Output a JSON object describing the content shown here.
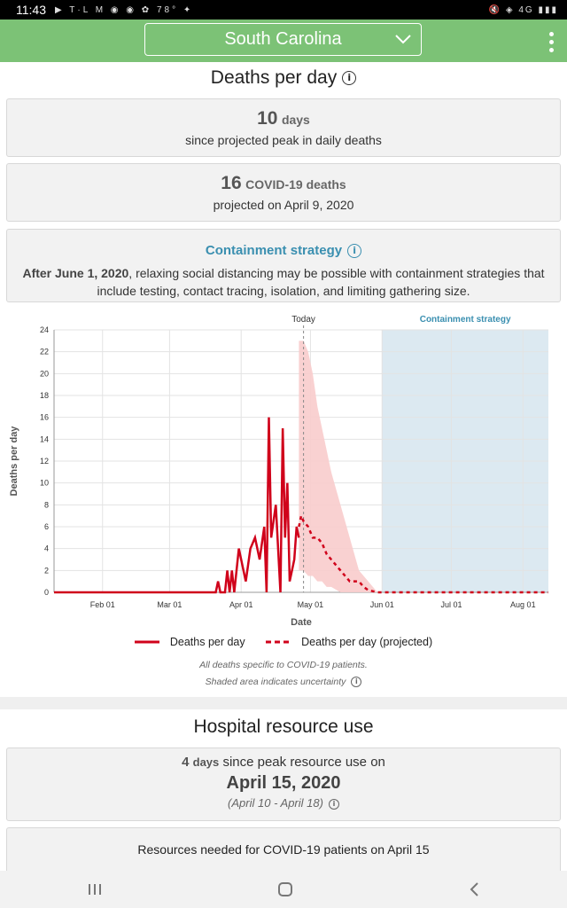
{
  "status_bar": {
    "time": "11:43",
    "left_icons": "▶ T·L M ◉ ◉ ✿ 78° ✦",
    "right_icons": "🔇 ◈ 4G ▮▮▮"
  },
  "header": {
    "state": "South Carolina"
  },
  "deaths_section": {
    "title": "Deaths per day",
    "peak_card": {
      "number": "10",
      "unit": "days",
      "text": "since projected peak in daily deaths"
    },
    "deaths_card": {
      "number": "16",
      "unit": "COVID-19 deaths",
      "text": "projected on April 9, 2020"
    },
    "containment": {
      "title": "Containment strategy",
      "text_bold": "After June 1, 2020",
      "text_rest": ", relaxing social distancing may be possible with containment strategies that include testing, contact tracing, isolation, and limiting gathering size."
    }
  },
  "chart_data": {
    "type": "line",
    "title": "",
    "xlabel": "Date",
    "ylabel": "Deaths per day",
    "ylim": [
      0,
      24
    ],
    "yticks": [
      0,
      2,
      4,
      6,
      8,
      10,
      12,
      14,
      16,
      18,
      20,
      22,
      24
    ],
    "xticks": [
      "Feb 01",
      "Mar 01",
      "Apr 01",
      "May 01",
      "Jun 01",
      "Jul 01",
      "Aug 01"
    ],
    "today_label": "Today",
    "containment_label": "Containment strategy",
    "series": [
      {
        "name": "Deaths per day",
        "style": "solid",
        "color": "#d0021b",
        "x": [
          0,
          70,
          71,
          72,
          74,
          75,
          76,
          77,
          78,
          80,
          82,
          83,
          85,
          87,
          89,
          91,
          92,
          93,
          94,
          96,
          98,
          99,
          100,
          101,
          102,
          103,
          104,
          105,
          106
        ],
        "values": [
          0,
          0,
          1,
          0,
          0,
          2,
          0,
          2,
          0,
          4,
          2,
          1,
          4,
          5,
          3,
          6,
          0,
          16,
          5,
          8,
          0,
          15,
          5,
          10,
          1,
          2,
          3,
          6,
          5
        ]
      },
      {
        "name": "Deaths per day (projected)",
        "style": "dashed",
        "color": "#d0021b",
        "x": [
          106,
          107,
          108,
          110,
          112,
          114,
          116,
          117,
          118,
          120,
          122,
          124,
          126,
          128,
          130,
          132,
          134,
          136,
          140,
          150,
          160,
          170,
          180,
          190,
          200,
          210,
          214
        ],
        "values": [
          6,
          7,
          6.5,
          6,
          5,
          5,
          4.5,
          4,
          3.5,
          3,
          2.5,
          2,
          1.5,
          1,
          1,
          1,
          0.5,
          0.2,
          0,
          0,
          0,
          0,
          0,
          0,
          0,
          0,
          0
        ]
      }
    ],
    "uncertainty_band": {
      "x": [
        106,
        108,
        110,
        112,
        114,
        116,
        118,
        120,
        124,
        128,
        132,
        136,
        140
      ],
      "lower": [
        2,
        2,
        1.5,
        1.5,
        1,
        1,
        0.5,
        0.5,
        0,
        0,
        0,
        0,
        0
      ],
      "upper": [
        23,
        23,
        22,
        20,
        17,
        15,
        13,
        11,
        8,
        5,
        2,
        1,
        0
      ]
    },
    "x_domain_days": [
      0,
      214
    ],
    "x_tick_days": [
      21,
      50,
      81,
      111,
      142,
      172,
      203
    ],
    "today_day": 108,
    "containment_start_day": 142
  },
  "legend": {
    "actual": "Deaths per day",
    "projected": "Deaths per day (projected)"
  },
  "notes": {
    "line1": "All deaths specific to COVID-19 patients.",
    "line2": "Shaded area indicates uncertainty"
  },
  "hospital_section": {
    "title": "Hospital resource use",
    "peak_number": "4",
    "peak_unit": "days",
    "peak_text": "since peak resource use on",
    "peak_date": "April 15, 2020",
    "range": "(April 10 - April 18)",
    "resources_title": "Resources needed for COVID-19 patients on April 15"
  },
  "colors": {
    "accent": "#7cc276",
    "link": "#3a8fb0",
    "deaths": "#d0021b",
    "band": "#f8cccc",
    "containment": "#dce9f1"
  }
}
